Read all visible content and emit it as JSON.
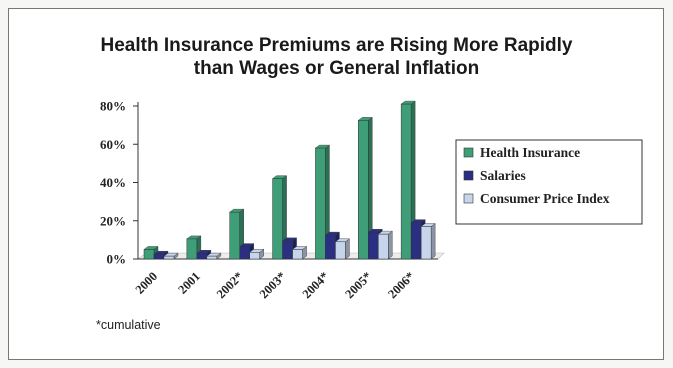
{
  "chart_data": {
    "type": "bar",
    "title_lines": [
      "Health Insurance Premiums are Rising More Rapidly",
      "than Wages or General Inflation"
    ],
    "categories": [
      "2000",
      "2001",
      "2002*",
      "2003*",
      "2004*",
      "2005*",
      "2006*"
    ],
    "series": [
      {
        "name": "Health Insurance",
        "color": "#3e9e78",
        "values": [
          5,
          10.5,
          24.5,
          42,
          58,
          72.5,
          81
        ]
      },
      {
        "name": "Salaries",
        "color": "#2a2f82",
        "values": [
          2.5,
          3,
          6.5,
          9.5,
          12.5,
          14,
          19
        ]
      },
      {
        "name": "Consumer Price Index",
        "color": "#c6d4ec",
        "values": [
          1.5,
          1.5,
          3.5,
          5,
          9,
          13,
          17
        ]
      }
    ],
    "y_ticks": [
      "80%",
      "60%",
      "40%",
      "20%",
      "0%"
    ],
    "ylim": [
      0,
      80
    ],
    "ylabel": "",
    "xlabel": "",
    "grid": false,
    "legend_position": "right",
    "footnote": "*cumulative"
  }
}
